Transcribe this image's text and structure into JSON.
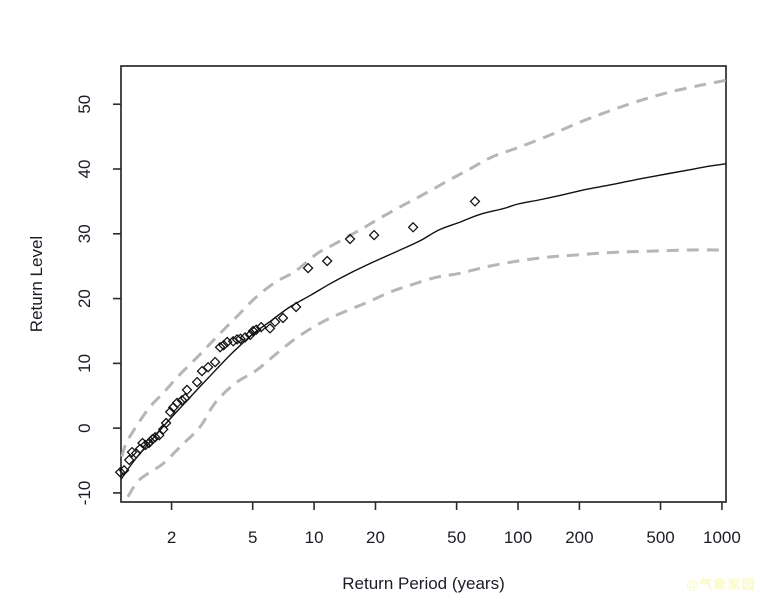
{
  "figure": {
    "background": "#ffffff",
    "watermark": {
      "text": "@气象家园",
      "color": "#fafac8"
    }
  },
  "chart_data": {
    "type": "line",
    "title": "",
    "xlabel": "Return Period (years)",
    "ylabel": "Return Level",
    "x_scale": "log10",
    "grid": false,
    "legend": "none",
    "xlim": [
      1.13,
      1047
    ],
    "ylim": [
      -11.4,
      55.9
    ],
    "x_ticks": [
      2,
      5,
      10,
      20,
      50,
      100,
      200,
      500,
      1000
    ],
    "y_ticks": [
      -10,
      0,
      10,
      20,
      30,
      40,
      50
    ],
    "axis_color": "#2b2b2b",
    "tick_label_color": "#1c1c26",
    "series": [
      {
        "name": "lower-confidence-bound",
        "style": "dashed",
        "color": "#b6b6b6",
        "width": 3,
        "points": [
          [
            1.22,
            -10.6
          ],
          [
            1.36,
            -8.3
          ],
          [
            1.55,
            -6.9
          ],
          [
            1.83,
            -5.4
          ],
          [
            2.25,
            -2.6
          ],
          [
            2.76,
            0.2
          ],
          [
            3.27,
            3.9
          ],
          [
            4.1,
            6.9
          ],
          [
            5.25,
            9.0
          ],
          [
            6.6,
            11.6
          ],
          [
            8.25,
            14.0
          ],
          [
            10.7,
            16.2
          ],
          [
            13.9,
            17.9
          ],
          [
            18.2,
            19.4
          ],
          [
            23.6,
            21.0
          ],
          [
            30.6,
            22.2
          ],
          [
            40,
            23.3
          ],
          [
            52,
            23.9
          ],
          [
            70,
            24.9
          ],
          [
            100,
            25.8
          ],
          [
            140,
            26.4
          ],
          [
            186,
            26.7
          ],
          [
            280,
            27.1
          ],
          [
            420,
            27.3
          ],
          [
            700,
            27.5
          ],
          [
            1047,
            27.5
          ]
        ]
      },
      {
        "name": "upper-confidence-bound",
        "style": "dashed",
        "color": "#b6b6b6",
        "width": 3,
        "points": [
          [
            1.14,
            -4.4
          ],
          [
            1.2,
            -2.3
          ],
          [
            1.35,
            0.4
          ],
          [
            1.56,
            3.2
          ],
          [
            1.83,
            5.5
          ],
          [
            2.2,
            8.3
          ],
          [
            2.76,
            11.4
          ],
          [
            3.38,
            14.3
          ],
          [
            4.2,
            17.3
          ],
          [
            5.15,
            20.1
          ],
          [
            6.44,
            22.5
          ],
          [
            8.07,
            24.2
          ],
          [
            10.3,
            26.9
          ],
          [
            12.4,
            28.3
          ],
          [
            16.8,
            30.6
          ],
          [
            21,
            32.4
          ],
          [
            27.3,
            34.4
          ],
          [
            35,
            36.2
          ],
          [
            45.4,
            38.2
          ],
          [
            58,
            40.0
          ],
          [
            75,
            41.9
          ],
          [
            100,
            43.3
          ],
          [
            140,
            45.1
          ],
          [
            200,
            47.2
          ],
          [
            283,
            49.0
          ],
          [
            400,
            50.6
          ],
          [
            560,
            51.9
          ],
          [
            780,
            52.9
          ],
          [
            1047,
            53.7
          ]
        ]
      },
      {
        "name": "fitted-return-level-curve",
        "style": "solid",
        "color": "#111111",
        "width": 1.4,
        "points": [
          [
            1.13,
            -7.9
          ],
          [
            1.25,
            -5.9
          ],
          [
            1.4,
            -3.9
          ],
          [
            1.6,
            -1.8
          ],
          [
            1.85,
            0.5
          ],
          [
            2.2,
            3.1
          ],
          [
            2.7,
            6.1
          ],
          [
            3.3,
            9.0
          ],
          [
            4.0,
            11.7
          ],
          [
            5.0,
            14.5
          ],
          [
            6.1,
            16.5
          ],
          [
            7.6,
            18.7
          ],
          [
            9.6,
            20.5
          ],
          [
            12,
            22.3
          ],
          [
            15.4,
            24.1
          ],
          [
            19.7,
            25.7
          ],
          [
            26,
            27.4
          ],
          [
            33,
            28.9
          ],
          [
            41,
            30.6
          ],
          [
            52,
            31.8
          ],
          [
            65,
            33.0
          ],
          [
            85,
            33.9
          ],
          [
            100,
            34.6
          ],
          [
            130,
            35.3
          ],
          [
            170,
            36.1
          ],
          [
            220,
            36.9
          ],
          [
            300,
            37.7
          ],
          [
            400,
            38.5
          ],
          [
            550,
            39.3
          ],
          [
            700,
            39.9
          ],
          [
            850,
            40.4
          ],
          [
            1047,
            40.8
          ]
        ]
      }
    ],
    "scatter": {
      "name": "empirical-return-levels",
      "marker": "open-diamond",
      "color": "#111111",
      "size": 9,
      "points": [
        [
          1.12,
          -6.8
        ],
        [
          1.17,
          -6.5
        ],
        [
          1.24,
          -4.9
        ],
        [
          1.28,
          -3.7
        ],
        [
          1.34,
          -3.9
        ],
        [
          1.4,
          -3.2
        ],
        [
          1.44,
          -2.3
        ],
        [
          1.49,
          -2.6
        ],
        [
          1.55,
          -2.3
        ],
        [
          1.61,
          -1.7
        ],
        [
          1.66,
          -1.4
        ],
        [
          1.74,
          -1.1
        ],
        [
          1.82,
          -0.2
        ],
        [
          1.88,
          0.8
        ],
        [
          1.97,
          2.5
        ],
        [
          2.04,
          3.2
        ],
        [
          2.13,
          3.9
        ],
        [
          2.25,
          4.3
        ],
        [
          2.33,
          4.6
        ],
        [
          2.38,
          5.9
        ],
        [
          2.67,
          7.1
        ],
        [
          2.82,
          8.8
        ],
        [
          3.02,
          9.4
        ],
        [
          3.27,
          10.2
        ],
        [
          3.46,
          12.5
        ],
        [
          3.6,
          12.8
        ],
        [
          3.75,
          13.3
        ],
        [
          4.01,
          13.4
        ],
        [
          4.19,
          13.7
        ],
        [
          4.35,
          13.8
        ],
        [
          4.59,
          14.0
        ],
        [
          4.86,
          14.4
        ],
        [
          5.02,
          15.0
        ],
        [
          5.2,
          15.2
        ],
        [
          5.5,
          15.6
        ],
        [
          6.08,
          15.4
        ],
        [
          6.44,
          16.4
        ],
        [
          7.04,
          17.0
        ],
        [
          8.16,
          18.7
        ],
        [
          9.35,
          24.7
        ],
        [
          11.6,
          25.8
        ],
        [
          15.0,
          29.2
        ],
        [
          19.7,
          29.8
        ],
        [
          30.6,
          31.0
        ],
        [
          61.5,
          35.0
        ]
      ]
    }
  }
}
